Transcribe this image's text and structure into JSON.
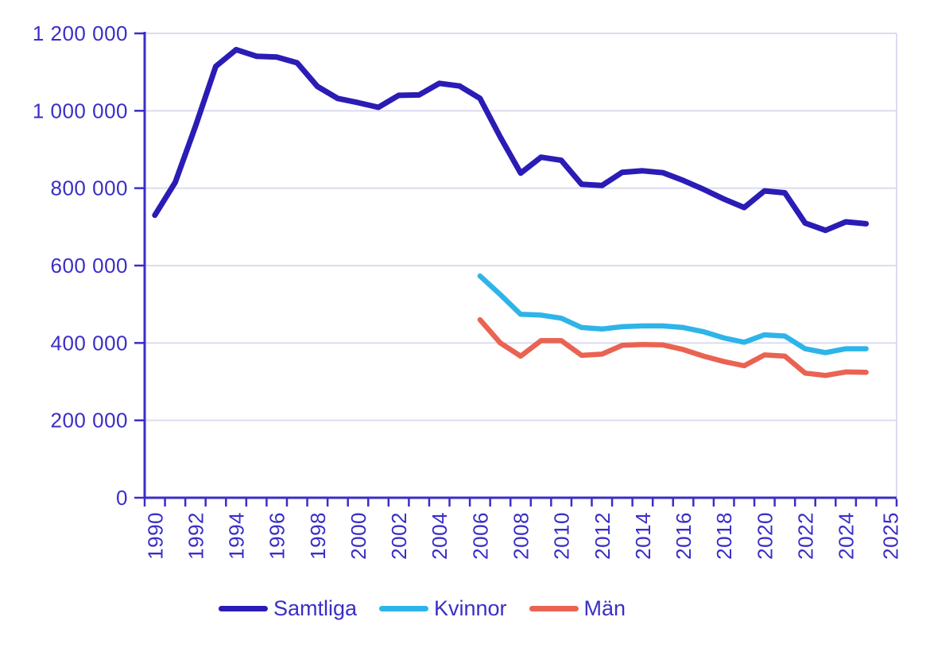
{
  "chart_data": {
    "type": "line",
    "title": "",
    "xlabel": "",
    "ylabel": "",
    "x_unit": "year",
    "xlim": [
      1990,
      2027
    ],
    "ylim": [
      0,
      1200000
    ],
    "grid": "horizontal",
    "legend_position": "bottom",
    "ytick_values": [
      0,
      200000,
      400000,
      600000,
      800000,
      1000000,
      1200000
    ],
    "ytick_labels": [
      "0",
      "200 000",
      "400 000",
      "600 000",
      "800 000",
      "1 000 000",
      "1 200 000"
    ],
    "xtick_labels": [
      "1990",
      "1992",
      "1994",
      "1996",
      "1998",
      "2000",
      "2002",
      "2004",
      "2006",
      "2008",
      "2010",
      "2012",
      "2014",
      "2016",
      "2018",
      "2020",
      "2022",
      "2024",
      "2025"
    ],
    "series": [
      {
        "name": "Samtliga",
        "color": "#2a1cb5",
        "start_year": 1990,
        "values": [
          730000,
          815000,
          960000,
          1115000,
          1158000,
          1141000,
          1139000,
          1124000,
          1063000,
          1032000,
          1021000,
          1009000,
          1040000,
          1041000,
          1071000,
          1064000,
          1032000,
          932000,
          839000,
          880000,
          872000,
          810000,
          807000,
          841000,
          845000,
          840000,
          820000,
          797000,
          772000,
          750000,
          793000,
          788000,
          710000,
          691000,
          713000,
          708000
        ]
      },
      {
        "name": "Kvinnor",
        "color": "#2eb4e8",
        "start_year": 2006,
        "values": [
          573000,
          525000,
          474000,
          472000,
          464000,
          440000,
          436000,
          442000,
          444000,
          444000,
          440000,
          429000,
          413000,
          402000,
          421000,
          418000,
          385000,
          375000,
          385000,
          385000
        ]
      },
      {
        "name": "Män",
        "color": "#ea6352",
        "start_year": 2006,
        "values": [
          460000,
          400000,
          366000,
          406000,
          406000,
          368000,
          371000,
          394000,
          396000,
          395000,
          383000,
          366000,
          352000,
          341000,
          369000,
          366000,
          322000,
          316000,
          325000,
          324000
        ]
      }
    ]
  },
  "style": {
    "axis_color": "#3a2ec6",
    "grid_color": "#dcdbf0",
    "background": "#ffffff"
  }
}
